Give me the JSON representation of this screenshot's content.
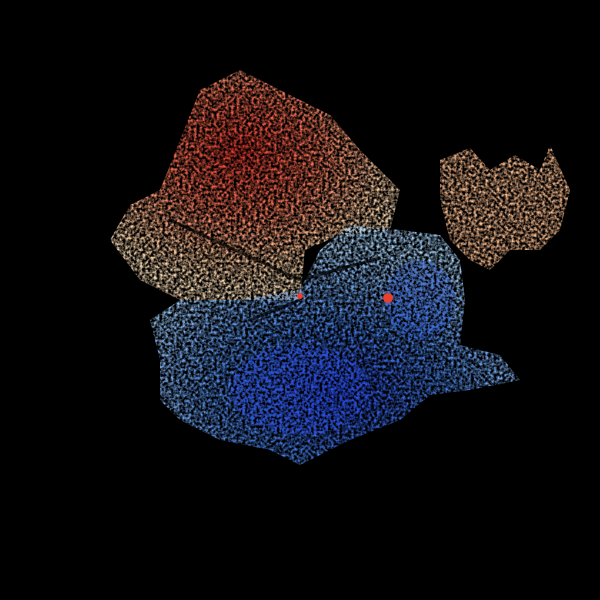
{
  "image": {
    "kind": "doppler-radial-velocity-radar-scan",
    "background_color": "#000000",
    "colors": {
      "inbound_strong": "#1f3fe0",
      "inbound_mid": "#3f7fe8",
      "inbound_light": "#9fd0ff",
      "outbound_light": "#ffd0a0",
      "outbound_mid": "#ff9a70",
      "outbound_strong": "#f03a30"
    }
  }
}
